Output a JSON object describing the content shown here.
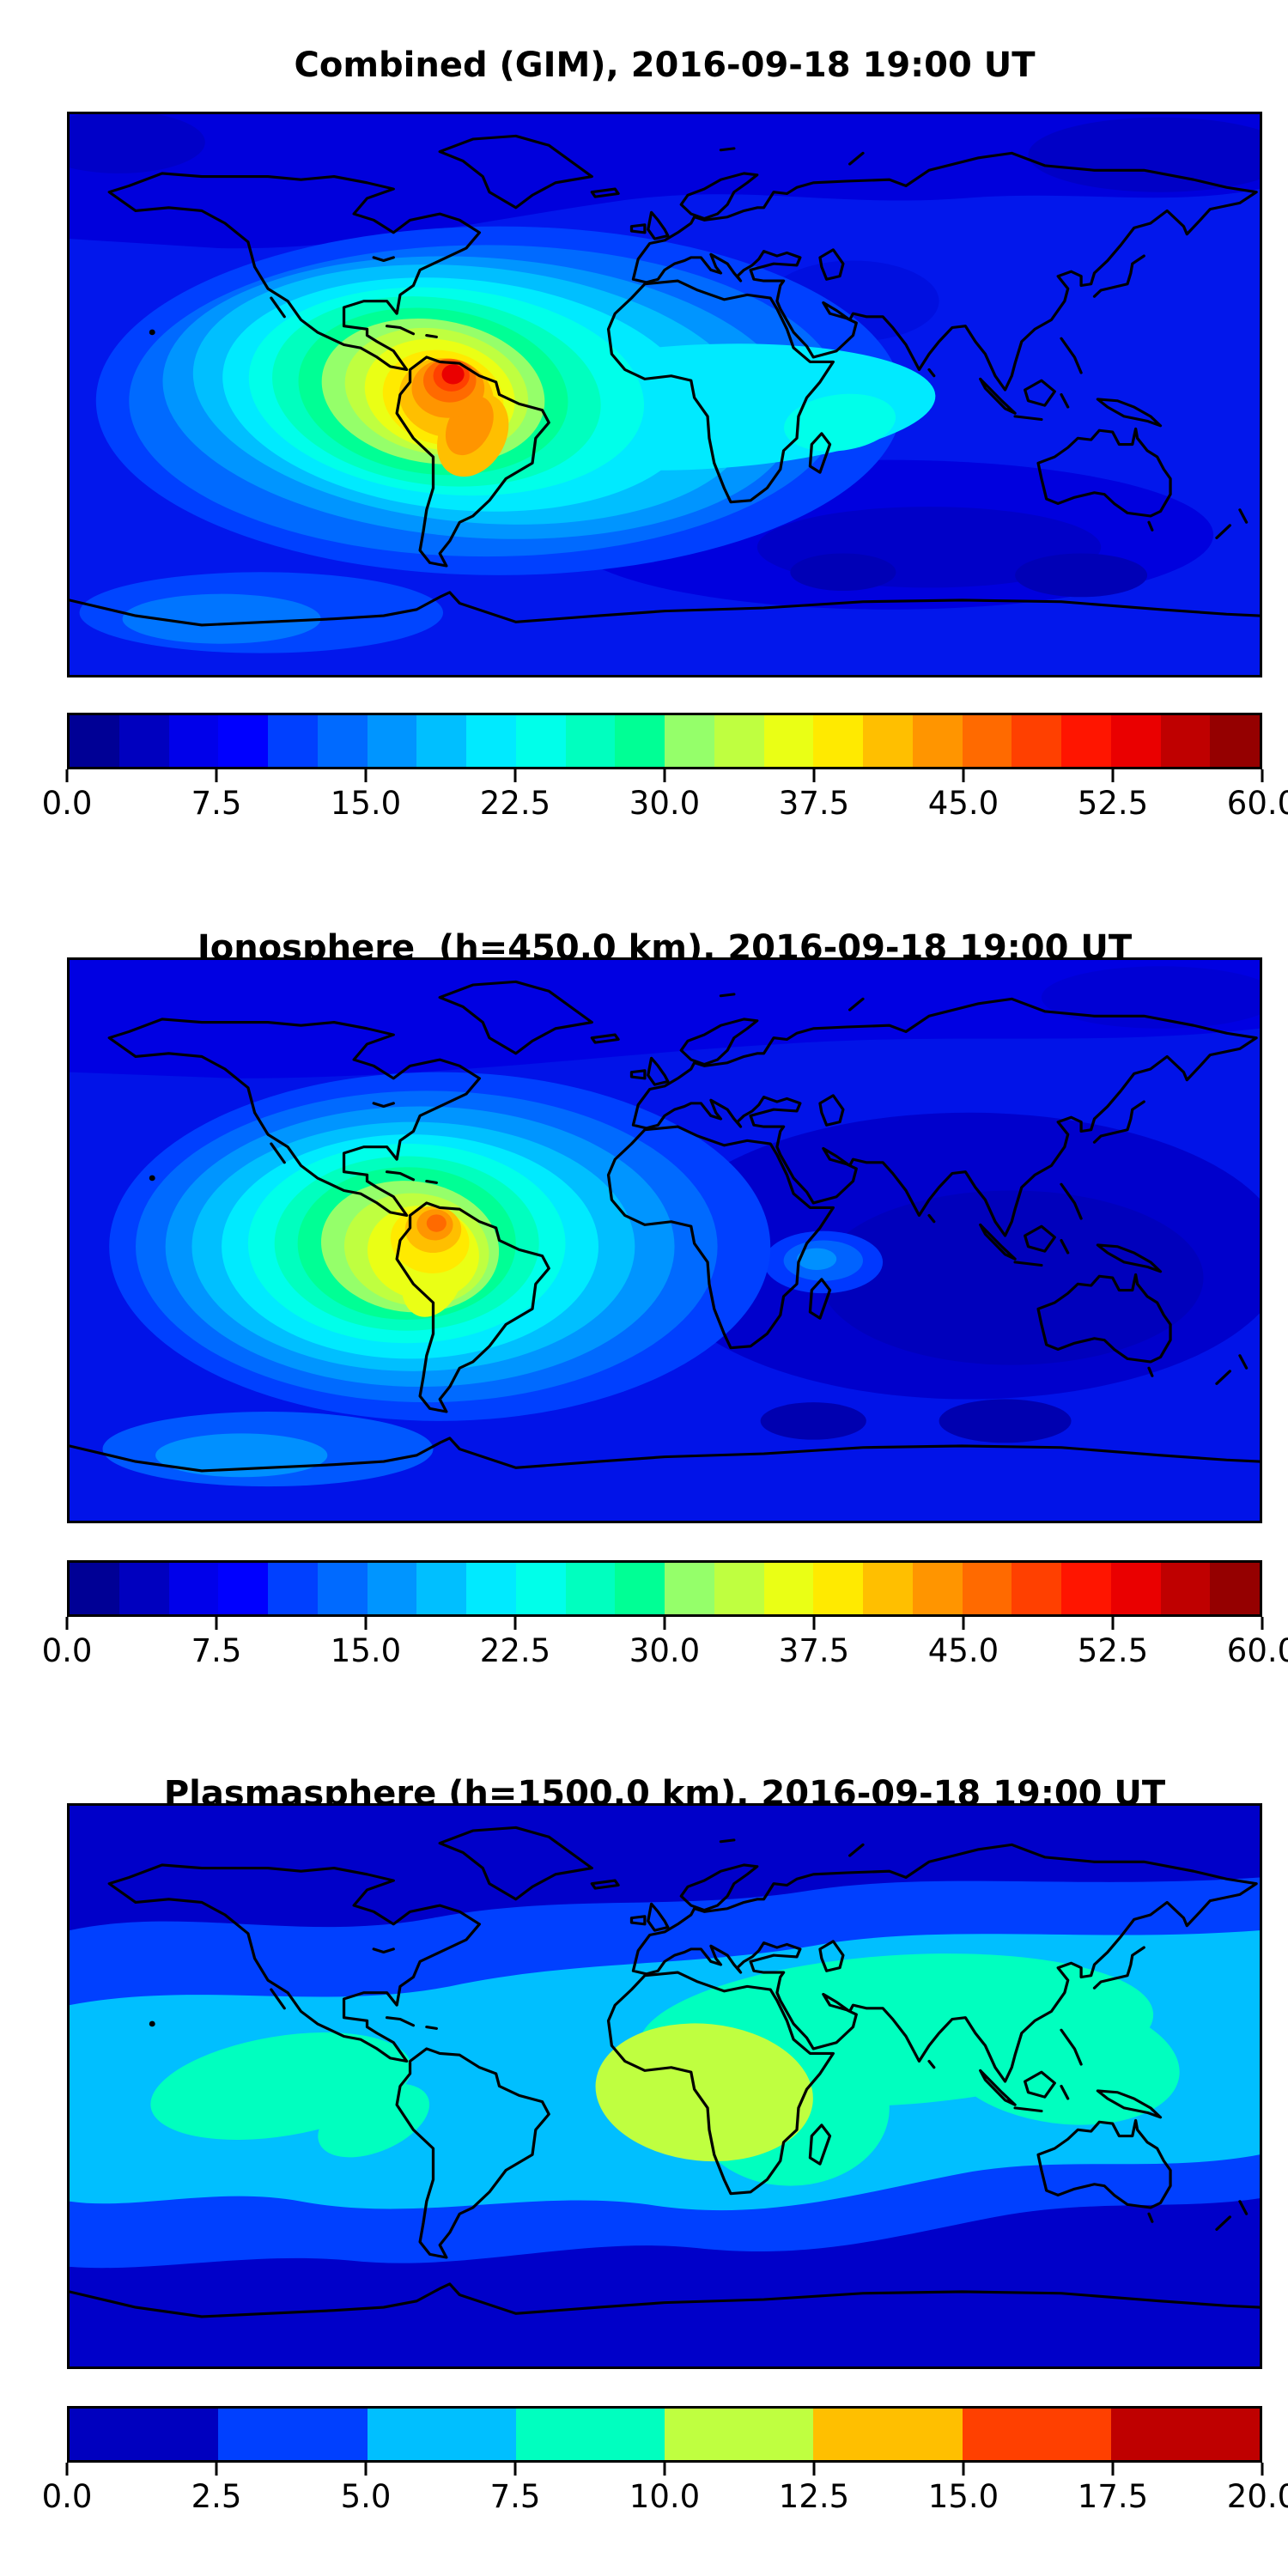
{
  "figure": {
    "background": "#ffffff",
    "coastline_color": "#000000",
    "frame_color": "#000000"
  },
  "panels": [
    {
      "id": "combined",
      "title": "Combined (GIM), 2016-09-18 19:00 UT",
      "colorbar": {
        "min": 0.0,
        "max": 60.0,
        "tick_labels": [
          "0.0",
          "7.5",
          "15.0",
          "22.5",
          "30.0",
          "37.5",
          "45.0",
          "52.5",
          "60.0"
        ],
        "segment_colors": [
          "#000095",
          "#0000BF",
          "#0000EA",
          "#0000FF",
          "#0040FF",
          "#006AFF",
          "#0095FF",
          "#00BFFF",
          "#00EAFF",
          "#00FFEA",
          "#00FFBF",
          "#00FF95",
          "#95FF6A",
          "#BFFF40",
          "#EAFF15",
          "#FFEA00",
          "#FFBF00",
          "#FF9500",
          "#FF6A00",
          "#FF4000",
          "#FF1500",
          "#EA0000",
          "#BF0000",
          "#950000"
        ]
      }
    },
    {
      "id": "ionosphere",
      "title": "Ionosphere  (h=450.0 km), 2016-09-18 19:00 UT",
      "colorbar": {
        "min": 0.0,
        "max": 60.0,
        "tick_labels": [
          "0.0",
          "7.5",
          "15.0",
          "22.5",
          "30.0",
          "37.5",
          "45.0",
          "52.5",
          "60.0"
        ],
        "segment_colors": [
          "#000095",
          "#0000BF",
          "#0000EA",
          "#0000FF",
          "#0040FF",
          "#006AFF",
          "#0095FF",
          "#00BFFF",
          "#00EAFF",
          "#00FFEA",
          "#00FFBF",
          "#00FF95",
          "#95FF6A",
          "#BFFF40",
          "#EAFF15",
          "#FFEA00",
          "#FFBF00",
          "#FF9500",
          "#FF6A00",
          "#FF4000",
          "#FF1500",
          "#EA0000",
          "#BF0000",
          "#950000"
        ]
      }
    },
    {
      "id": "plasmasphere",
      "title": "Plasmasphere (h=1500.0 km), 2016-09-18 19:00 UT",
      "colorbar": {
        "min": 0.0,
        "max": 20.0,
        "tick_labels": [
          "0.0",
          "2.5",
          "5.0",
          "7.5",
          "10.0",
          "12.5",
          "15.0",
          "17.5",
          "20.0"
        ],
        "segment_colors": [
          "#0000BF",
          "#0040FF",
          "#00BFFF",
          "#00FFBF",
          "#BFFF40",
          "#FFBF00",
          "#FF4000",
          "#BF0000"
        ]
      }
    }
  ],
  "chart_data": [
    {
      "type": "heatmap",
      "title": "Combined (GIM), 2016-09-18 19:00 UT",
      "map": "global equirectangular world map, lon -180..180, lat -90..90, black coastlines",
      "colormap": "jet, 24 discrete filled-contour levels",
      "value_range": [
        0.0,
        60.0
      ],
      "contour_level_step": 2.5,
      "colorbar_ticks": [
        0.0,
        7.5,
        15.0,
        22.5,
        30.0,
        37.5,
        45.0,
        52.5,
        60.0
      ],
      "features": [
        {
          "label": "primary peak over northern South America",
          "lon": -65,
          "lat": 3,
          "value": 57.5
        },
        {
          "label": "orange lobe over central South America",
          "lon": -55,
          "lat": -12,
          "value": 45
        },
        {
          "label": "enhanced tongue across equatorial Atlantic toward West Africa",
          "lon": -20,
          "lat": 8,
          "value": 27.5
        },
        {
          "label": "secondary enhancement near East Africa / western Indian Ocean",
          "lon": 40,
          "lat": -8,
          "value": 25
        },
        {
          "label": "broad cyan region over eastern Pacific",
          "lon": -120,
          "lat": -10,
          "value": 22.5
        },
        {
          "label": "background ocean value",
          "lon": 150,
          "lat": 10,
          "value": 10
        },
        {
          "label": "minimum, southern Indian Ocean",
          "lon": 80,
          "lat": -48,
          "value": 4
        },
        {
          "label": "minimum, Arctic Russia",
          "lon": 120,
          "lat": 75,
          "value": 6
        }
      ]
    },
    {
      "type": "heatmap",
      "title": "Ionosphere  (h=450.0 km), 2016-09-18 19:00 UT",
      "map": "global equirectangular world map, lon -180..180, lat -90..90, black coastlines",
      "colormap": "jet, 24 discrete filled-contour levels",
      "value_range": [
        0.0,
        60.0
      ],
      "contour_level_step": 2.5,
      "colorbar_ticks": [
        0.0,
        7.5,
        15.0,
        22.5,
        30.0,
        37.5,
        45.0,
        52.5,
        60.0
      ],
      "features": [
        {
          "label": "primary peak over northern South America",
          "lon": -68,
          "lat": 5,
          "value": 47.5
        },
        {
          "label": "yellow region extending south over South America",
          "lon": -60,
          "lat": -20,
          "value": 37.5
        },
        {
          "label": "cyan halo over Americas and east Pacific",
          "lon": -100,
          "lat": 0,
          "value": 22.5
        },
        {
          "label": "bright spot near Madagascar / western Indian Ocean",
          "lon": 48,
          "lat": -7,
          "value": 12.5
        },
        {
          "label": "dark minimum over southern Asia and west Pacific",
          "lon": 105,
          "lat": -10,
          "value": 3.5
        },
        {
          "label": "light patch near Antarctic coast south of Pacific",
          "lon": -130,
          "lat": -68,
          "value": 12.5
        }
      ]
    },
    {
      "type": "heatmap",
      "title": "Plasmasphere (h=1500.0 km), 2016-09-18 19:00 UT",
      "map": "global equirectangular world map, lon -180..180, lat -90..90, black coastlines",
      "colormap": "jet, 8 discrete filled-contour levels",
      "value_range": [
        0.0,
        20.0
      ],
      "contour_level_step": 2.5,
      "colorbar_ticks": [
        0.0,
        2.5,
        5.0,
        7.5,
        10.0,
        12.5,
        15.0,
        17.5,
        20.0
      ],
      "features": [
        {
          "label": "yellow-green maximum over central Africa",
          "lon": 12,
          "lat": -2,
          "value": 11
        },
        {
          "label": "turquoise band over Africa, Middle East, south Asia to Japan",
          "lon": 70,
          "lat": 16,
          "value": 8.75
        },
        {
          "label": "turquoise patch over Central America / east Pacific",
          "lon": -116,
          "lat": 0,
          "value": 8.75
        },
        {
          "label": "cyan equatorial band spanning all longitudes",
          "lon": -170,
          "lat": 0,
          "value": 6.25
        },
        {
          "label": "blue mid-latitude band",
          "lon": 0,
          "lat": 45,
          "value": 3.75
        },
        {
          "label": "dark blue polar background, north and south",
          "lon": 0,
          "lat": 75,
          "value": 1.5
        }
      ]
    }
  ]
}
